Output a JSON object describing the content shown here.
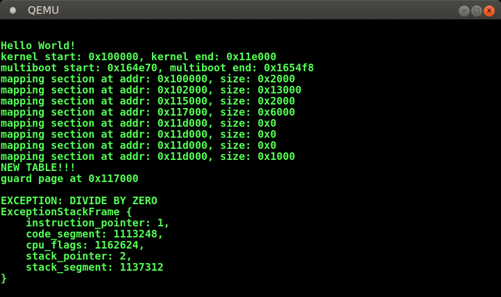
{
  "window": {
    "title": "QEMU",
    "minimize": "–",
    "maximize": "□",
    "close": "x"
  },
  "console": {
    "color": "#55ff55",
    "lines": [
      "Hello World!",
      "kernel start: 0x100000, kernel end: 0x11e000",
      "multiboot start: 0x164e70, multiboot end: 0x1654f8",
      "mapping section at addr: 0x100000, size: 0x2000",
      "mapping section at addr: 0x102000, size: 0x13000",
      "mapping section at addr: 0x115000, size: 0x2000",
      "mapping section at addr: 0x117000, size: 0x6000",
      "mapping section at addr: 0x11d000, size: 0x0",
      "mapping section at addr: 0x11d000, size: 0x0",
      "mapping section at addr: 0x11d000, size: 0x0",
      "mapping section at addr: 0x11d000, size: 0x1000",
      "NEW TABLE!!!",
      "guard page at 0x117000",
      "",
      "EXCEPTION: DIVIDE BY ZERO",
      "ExceptionStackFrame {",
      "    instruction_pointer: 1,",
      "    code_segment: 1113248,",
      "    cpu_flags: 1162624,",
      "    stack_pointer: 2,",
      "    stack_segment: 1137312",
      "}"
    ]
  }
}
